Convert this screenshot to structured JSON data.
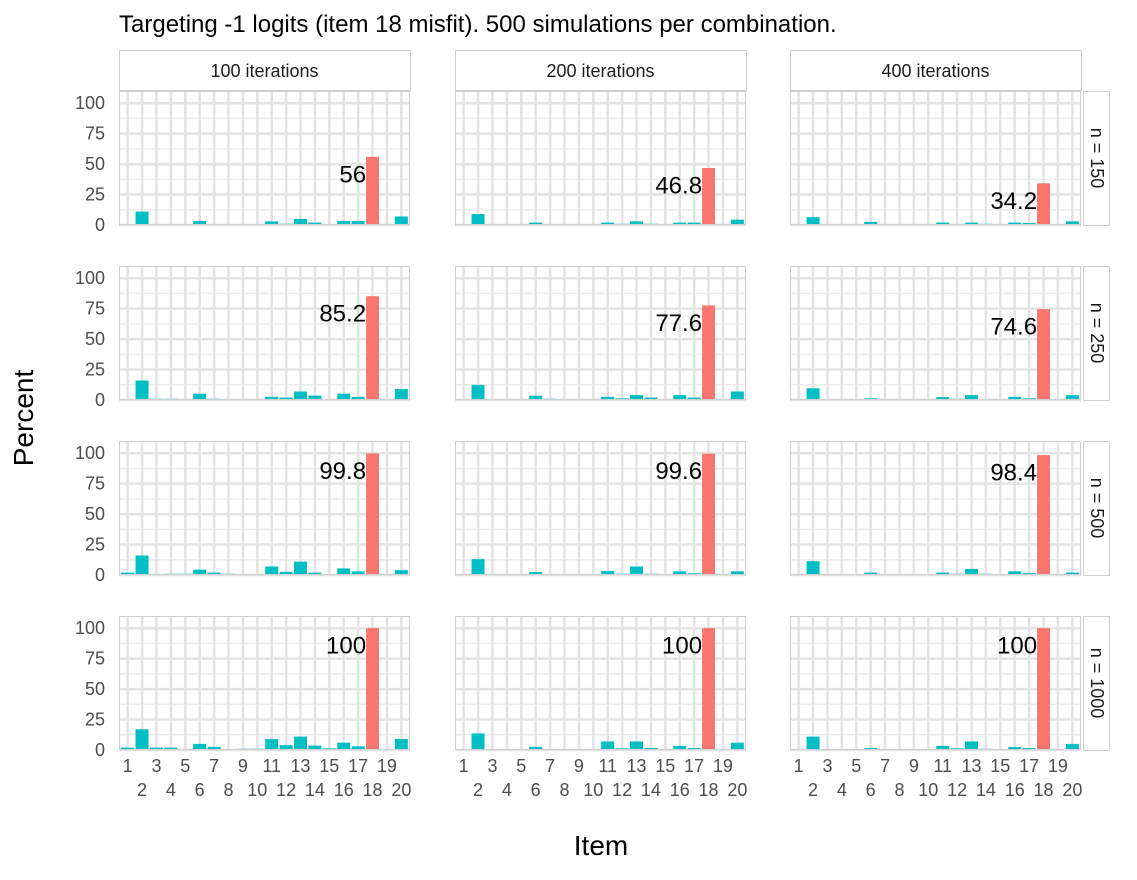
{
  "chart_data": {
    "type": "bar",
    "title": "Targeting -1 logits (item 18 misfit). 500 simulations per combination.",
    "xlabel": "Item",
    "ylabel": "Percent",
    "ylim": [
      0,
      110
    ],
    "y_ticks": [
      0,
      25,
      50,
      75,
      100
    ],
    "x_tick_labels": [
      "1",
      "2",
      "3",
      "4",
      "5",
      "6",
      "7",
      "8",
      "9",
      "10",
      "11",
      "12",
      "13",
      "14",
      "15",
      "16",
      "17",
      "18",
      "19",
      "20"
    ],
    "grid": true,
    "legend": "none",
    "colors": {
      "highlight": "#F8766D",
      "other": "#00BFC4"
    },
    "highlight_item": 18,
    "col_facets": [
      "100 iterations",
      "200 iterations",
      "400 iterations"
    ],
    "row_facets": [
      "n = 150",
      "n = 250",
      "n = 500",
      "n = 1000"
    ],
    "panels": [
      {
        "row": 0,
        "col": 0,
        "label": "56",
        "values": [
          0.4,
          11,
          0.4,
          0.4,
          0,
          3.4,
          0.6,
          0.4,
          0,
          0,
          3,
          1,
          5,
          2,
          0,
          3.4,
          3.4,
          56,
          0,
          7
        ]
      },
      {
        "row": 0,
        "col": 1,
        "label": "46.8",
        "values": [
          0.4,
          9,
          0,
          0.4,
          0,
          2,
          0.4,
          0.2,
          0,
          0,
          2,
          1,
          3,
          1,
          0,
          2,
          2,
          46.8,
          0,
          4.4
        ]
      },
      {
        "row": 0,
        "col": 2,
        "label": "34.2",
        "values": [
          0,
          6.5,
          0,
          0.4,
          0,
          2.6,
          0,
          0,
          0,
          0,
          2,
          0.6,
          2,
          1,
          0,
          2,
          1.6,
          34.2,
          0,
          3
        ]
      },
      {
        "row": 1,
        "col": 0,
        "label": "85.2",
        "values": [
          0.4,
          16,
          1,
          1,
          0,
          5.2,
          1,
          0.4,
          0,
          0,
          2.6,
          2,
          7,
          3.6,
          0,
          5.2,
          2.6,
          85.2,
          0,
          9
        ]
      },
      {
        "row": 1,
        "col": 1,
        "label": "77.6",
        "values": [
          0,
          12.4,
          0,
          0,
          0,
          3.6,
          1,
          0,
          0,
          0,
          2.6,
          1.4,
          4,
          2,
          0,
          4,
          2,
          77.6,
          0,
          7
        ]
      },
      {
        "row": 1,
        "col": 2,
        "label": "74.6",
        "values": [
          0,
          9.6,
          0,
          0,
          0,
          1.4,
          0.4,
          0,
          0,
          0,
          2.4,
          1,
          4,
          0.8,
          0,
          2.6,
          1.4,
          74.6,
          0,
          4
        ]
      },
      {
        "row": 2,
        "col": 0,
        "label": "99.8",
        "values": [
          2,
          16,
          0,
          1,
          1,
          4.4,
          2,
          1,
          0,
          0,
          7,
          2.6,
          11,
          2,
          0,
          5.4,
          3,
          99.8,
          0,
          4
        ]
      },
      {
        "row": 2,
        "col": 1,
        "label": "99.6",
        "values": [
          0.4,
          13,
          0,
          0.4,
          0,
          2.4,
          0.4,
          0,
          0,
          0,
          3.4,
          1,
          7,
          1,
          0,
          3,
          1.4,
          99.6,
          0,
          3
        ]
      },
      {
        "row": 2,
        "col": 2,
        "label": "98.4",
        "values": [
          0,
          11.4,
          0,
          0,
          0,
          2,
          0.2,
          0,
          0,
          0,
          2,
          1,
          5,
          1,
          0,
          3,
          1.6,
          98.4,
          0,
          2
        ]
      },
      {
        "row": 3,
        "col": 0,
        "label": "100",
        "values": [
          2,
          17,
          2,
          2,
          0,
          5,
          2.6,
          0.4,
          1,
          1,
          9,
          4,
          11,
          3.6,
          1.4,
          6,
          3,
          100,
          0,
          9
        ]
      },
      {
        "row": 3,
        "col": 1,
        "label": "100",
        "values": [
          0.6,
          13.6,
          0.4,
          0.6,
          0,
          2.6,
          0.6,
          0,
          0,
          0,
          7,
          1.4,
          7,
          1.6,
          0,
          3.4,
          1.6,
          100,
          0,
          6
        ]
      },
      {
        "row": 3,
        "col": 2,
        "label": "100",
        "values": [
          0.6,
          11,
          0,
          0,
          0,
          1.6,
          0.4,
          0,
          0,
          0,
          3.4,
          1.4,
          7,
          1,
          0,
          2.4,
          1.6,
          100,
          0,
          5
        ]
      }
    ]
  }
}
